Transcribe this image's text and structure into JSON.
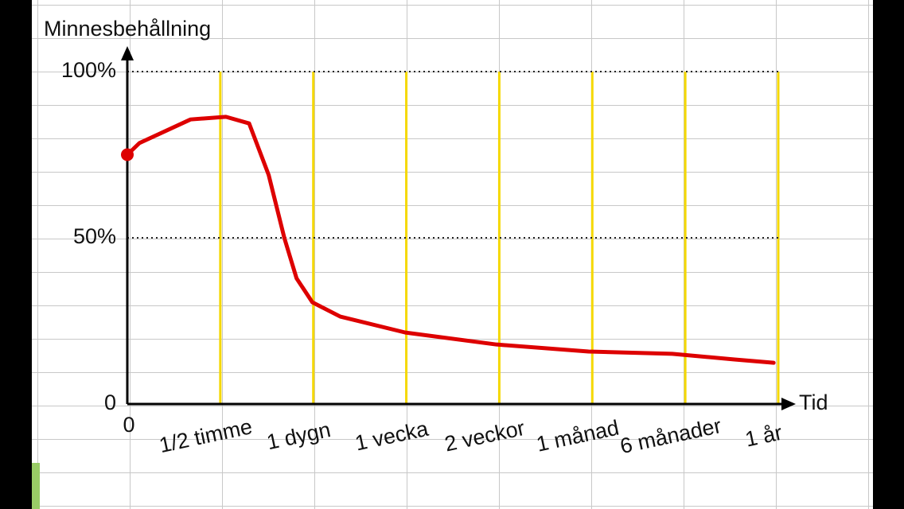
{
  "chart_data": {
    "type": "line",
    "y_label": "Minnesbehållning",
    "x_label": "Tid",
    "xlim": [
      0,
      7
    ],
    "xticks": [
      0,
      {
        "value": 1,
        "label": "1/2 timme"
      },
      {
        "value": 2,
        "label": "1 dygn"
      },
      {
        "value": 3,
        "label": "1 vecka"
      },
      {
        "value": 4,
        "label": "2 veckor"
      },
      {
        "value": 5,
        "label": "1 månad"
      },
      {
        "value": 6,
        "label": "6 månader"
      },
      {
        "value": 7,
        "label": "1 år"
      }
    ],
    "ylim": [
      0,
      100
    ],
    "yticks": [
      0,
      {
        "value": 50,
        "label": "50%"
      },
      {
        "value": 100,
        "label": "100%"
      }
    ],
    "series": [
      {
        "color": "#dd0000",
        "x": [
          0,
          0.13,
          0.68,
          1.06,
          1.31,
          1.52,
          1.69,
          1.82,
          1.99,
          2.29,
          2.99,
          3.97,
          4.96,
          5.86,
          6.53,
          6.95
        ],
        "values": [
          75,
          78.5,
          85.6,
          86.4,
          84.4,
          68.9,
          49.8,
          37.8,
          30.6,
          26.3,
          21.5,
          17.9,
          15.8,
          15.1,
          13.4,
          12.4
        ]
      }
    ]
  }
}
